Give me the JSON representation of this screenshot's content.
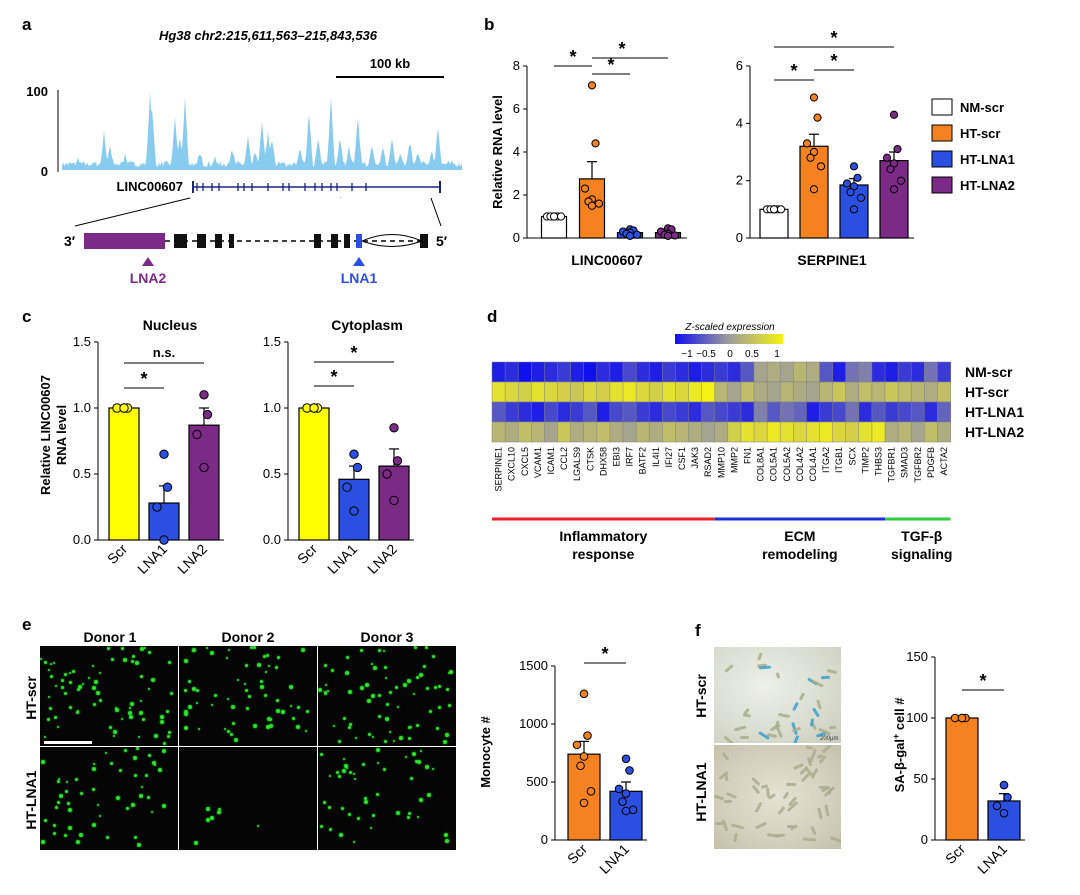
{
  "colors": {
    "nm": "#ffffff",
    "ht": "#f58220",
    "lna1": "#2b4fe0",
    "lna2": "#7b2a86",
    "scr_yellow": "#ffff00",
    "track": "#87cbef",
    "gene": "#1a237e",
    "red_bar": "#e8212b",
    "blue_bar": "#1b2fd6",
    "green_bar": "#2ecc40"
  },
  "panel_a": {
    "label": "a",
    "coords": "Hg38 chr2:215,611,563–215,843,536",
    "scale_label": "100 kb",
    "y_ticks": [
      "100",
      "0"
    ],
    "gene_name": "LINC00607",
    "end3": "3′",
    "end5": "5′",
    "lna2_label": "LNA2",
    "lna1_label": "LNA1"
  },
  "panel_b": {
    "label": "b",
    "ylabel": "Relative RNA level",
    "legend": [
      "NM-scr",
      "HT-scr",
      "HT-LNA1",
      "HT-LNA2"
    ],
    "sig": "*"
  },
  "panel_c": {
    "label": "c",
    "ylabel_line1": "Relative LINC00607",
    "ylabel_line2": "RNA level",
    "ns": "n.s.",
    "sig": "*"
  },
  "panel_d": {
    "label": "d",
    "scale_title": "Z-scaled expression",
    "scale_ticks": [
      "−1",
      "−0.5",
      "0",
      "0.5",
      "1"
    ],
    "rows": [
      "NM-scr",
      "HT-scr",
      "HT-LNA1",
      "HT-LNA2"
    ],
    "genes": [
      "SERPINE1",
      "CXCL10",
      "CXCL5",
      "VCAM1",
      "ICAM1",
      "CCL2",
      "LGALS9",
      "CTSK",
      "DHX58",
      "EBI3",
      "IRF7",
      "BATF2",
      "IL4I1",
      "IFI27",
      "CSF1",
      "JAK3",
      "RSAD2",
      "MMP10",
      "MMP2",
      "FN1",
      "COL8A1",
      "COL5A1",
      "COL5A2",
      "COL4A2",
      "COL4A1",
      "ITGA2",
      "ITGB1",
      "SCX",
      "TIMP2",
      "THBS3",
      "TGFBR1",
      "SMAD3",
      "TGFBR2",
      "PDGFB",
      "ACTA2"
    ],
    "groups": [
      {
        "line1": "Inflammatory",
        "line2": "response"
      },
      {
        "line1": "ECM",
        "line2": "remodeling"
      },
      {
        "line1": "TGF-β",
        "line2": "signaling"
      }
    ],
    "matrix": [
      [
        -0.9,
        -0.8,
        -1,
        -0.9,
        -0.8,
        -0.7,
        -0.9,
        -1,
        -0.8,
        -0.9,
        -0.6,
        -0.8,
        -0.9,
        -0.7,
        -0.8,
        -0.9,
        -0.8,
        -0.7,
        -0.8,
        -0.5,
        0.1,
        0.2,
        0.1,
        0.3,
        0.2,
        -0.5,
        -0.9,
        -0.3,
        -0.2,
        -0.8,
        -0.9,
        -0.7,
        -0.8,
        -0.3,
        -0.7
      ],
      [
        0.8,
        0.7,
        0.6,
        0.8,
        0.7,
        0.6,
        0.5,
        0.7,
        0.6,
        0.8,
        0.9,
        0.7,
        0.6,
        0.8,
        0.7,
        0.9,
        1,
        0.3,
        0.1,
        0.4,
        0.2,
        0.1,
        0.3,
        0.2,
        0.1,
        0.3,
        0.5,
        0.2,
        0.4,
        0.3,
        0.5,
        0.4,
        0.3,
        0.2,
        0.4
      ],
      [
        -0.5,
        -0.7,
        -0.8,
        -0.9,
        -0.6,
        -0.8,
        -0.7,
        -0.5,
        -0.9,
        -0.6,
        -0.5,
        -0.7,
        -0.8,
        -0.6,
        -0.7,
        -0.8,
        -0.5,
        -0.6,
        -0.7,
        -0.8,
        -0.2,
        -0.5,
        -0.3,
        -0.4,
        -0.9,
        -0.7,
        -0.6,
        -0.3,
        -0.8,
        -0.5,
        -0.7,
        -0.6,
        -0.5,
        -0.8,
        -0.4
      ],
      [
        0.3,
        0.2,
        0.4,
        0.3,
        0.1,
        0.5,
        0.2,
        0.3,
        0.4,
        0.2,
        0.1,
        0.3,
        0.2,
        0.4,
        0.3,
        0.2,
        0.1,
        0.2,
        0.6,
        0.8,
        0.7,
        0.9,
        0.8,
        0.7,
        0.8,
        0.9,
        0.7,
        0.6,
        0.8,
        0.9,
        0.2,
        0.3,
        0.1,
        0.4,
        0.2
      ]
    ]
  },
  "panel_e": {
    "label": "e",
    "donors": [
      "Donor 1",
      "Donor 2",
      "Donor 3"
    ],
    "rows": [
      "HT-scr",
      "HT-LNA1"
    ],
    "ylabel": "Monocyte #",
    "sig": "*"
  },
  "panel_f": {
    "label": "f",
    "rows": [
      "HT-scr",
      "HT-LNA1"
    ],
    "scale_label": "200µm",
    "ylabel_pre": "SA-β-gal",
    "ylabel_sup": "+",
    "ylabel_post": " cell #",
    "sig": "*"
  },
  "chart_data": [
    {
      "type": "bar",
      "title": "LINC00607",
      "ylabel": "Relative RNA level",
      "ylim": [
        0,
        8
      ],
      "yticks": [
        0,
        2,
        4,
        6,
        8
      ],
      "categories": [
        "NM-scr",
        "HT-scr",
        "HT-LNA1",
        "HT-LNA2"
      ],
      "values": [
        1.0,
        2.75,
        0.25,
        0.25
      ],
      "errors": [
        0.05,
        0.8,
        0.05,
        0.07
      ],
      "points": [
        [
          1,
          1,
          1,
          1,
          1,
          1,
          1
        ],
        [
          7.1,
          4.4,
          2.3,
          1.8,
          1.7,
          1.6,
          1.5
        ],
        [
          0.4,
          0.35,
          0.3,
          0.25,
          0.2,
          0.15,
          0.1
        ],
        [
          0.45,
          0.4,
          0.3,
          0.2,
          0.15,
          0.12,
          0.1
        ]
      ],
      "significance": [
        [
          "NM-scr",
          "HT-scr"
        ],
        [
          "HT-scr",
          "HT-LNA1"
        ],
        [
          "HT-scr",
          "HT-LNA2"
        ]
      ]
    },
    {
      "type": "bar",
      "title": "SERPINE1",
      "ylim": [
        0,
        6
      ],
      "yticks": [
        0,
        2,
        4,
        6
      ],
      "categories": [
        "NM-scr",
        "HT-scr",
        "HT-LNA1",
        "HT-LNA2"
      ],
      "values": [
        1.0,
        3.2,
        1.85,
        2.7
      ],
      "errors": [
        0.02,
        0.42,
        0.22,
        0.3
      ],
      "points": [
        [
          1,
          1,
          1,
          1,
          1,
          1,
          1
        ],
        [
          4.9,
          4.2,
          3.3,
          3.0,
          2.8,
          2.5,
          1.7
        ],
        [
          2.5,
          2.1,
          1.9,
          1.8,
          1.6,
          1.4,
          1.0
        ],
        [
          4.3,
          3.1,
          2.8,
          2.6,
          2.4,
          2.0,
          1.7
        ]
      ],
      "significance": [
        [
          "NM-scr",
          "HT-scr"
        ],
        [
          "HT-scr",
          "HT-LNA1"
        ],
        [
          "NM-scr",
          "HT-LNA2"
        ]
      ]
    },
    {
      "type": "bar",
      "title": "Nucleus",
      "ylabel": "Relative LINC00607 RNA level",
      "ylim": [
        0,
        1.5
      ],
      "yticks": [
        "0.0",
        "0.5",
        "1.0",
        "1.5"
      ],
      "categories": [
        "Scr",
        "LNA1",
        "LNA2"
      ],
      "values": [
        1.0,
        0.28,
        0.87
      ],
      "errors": [
        0.0,
        0.13,
        0.13
      ],
      "points": [
        [
          1,
          1,
          1,
          1
        ],
        [
          0.65,
          0.4,
          0.25,
          0.0
        ],
        [
          1.1,
          0.95,
          0.8,
          0.55
        ]
      ],
      "annotations": [
        [
          "Scr",
          "LNA1",
          "*"
        ],
        [
          "Scr",
          "LNA2",
          "n.s."
        ]
      ]
    },
    {
      "type": "bar",
      "title": "Cytoplasm",
      "ylim": [
        0,
        1.5
      ],
      "yticks": [
        "0.0",
        "0.5",
        "1.0",
        "1.5"
      ],
      "categories": [
        "Scr",
        "LNA1",
        "LNA2"
      ],
      "values": [
        1.0,
        0.46,
        0.56
      ],
      "errors": [
        0.0,
        0.1,
        0.13
      ],
      "points": [
        [
          1,
          1,
          1,
          1
        ],
        [
          0.65,
          0.55,
          0.4,
          0.22
        ],
        [
          0.85,
          0.6,
          0.5,
          0.3
        ]
      ],
      "annotations": [
        [
          "Scr",
          "LNA1",
          "*"
        ],
        [
          "Scr",
          "LNA2",
          "*"
        ]
      ]
    },
    {
      "type": "bar",
      "ylabel": "Monocyte #",
      "ylim": [
        0,
        1500
      ],
      "yticks": [
        0,
        500,
        1000,
        1500
      ],
      "categories": [
        "Scr",
        "LNA1"
      ],
      "values": [
        740,
        420
      ],
      "errors": [
        110,
        80
      ],
      "points": [
        [
          1260,
          900,
          820,
          720,
          640,
          420,
          320
        ],
        [
          700,
          600,
          440,
          400,
          330,
          260,
          250
        ]
      ],
      "annotations": [
        [
          "Scr",
          "LNA1",
          "*"
        ]
      ]
    },
    {
      "type": "bar",
      "ylabel": "SA-β-gal+ cell #",
      "ylim": [
        0,
        150
      ],
      "yticks": [
        0,
        50,
        100,
        150
      ],
      "categories": [
        "Scr",
        "LNA1"
      ],
      "values": [
        100,
        32
      ],
      "errors": [
        0,
        6
      ],
      "points": [
        [
          100,
          100,
          100,
          100
        ],
        [
          45,
          35,
          28,
          22
        ]
      ],
      "annotations": [
        [
          "Scr",
          "LNA1",
          "*"
        ]
      ]
    }
  ]
}
